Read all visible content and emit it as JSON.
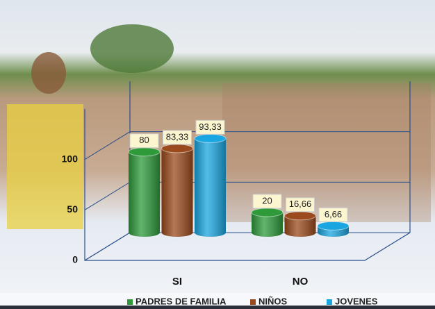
{
  "chart_data": {
    "type": "bar",
    "categories": [
      "SI",
      "NO"
    ],
    "series": [
      {
        "name": "PADRES DE FAMILIA",
        "color": "#2e9a3a",
        "values": [
          80,
          20
        ],
        "value_labels": [
          "80",
          "20"
        ]
      },
      {
        "name": "NIÑOS",
        "color": "#9a4a1c",
        "values": [
          83.33,
          16.66
        ],
        "value_labels": [
          "83,33",
          "16,66"
        ]
      },
      {
        "name": "JOVENES",
        "color": "#1aa6e0",
        "values": [
          93.33,
          6.66
        ],
        "value_labels": [
          "93,33",
          "6,66"
        ]
      }
    ],
    "ylim": [
      0,
      150
    ],
    "yticks": [
      0,
      50,
      100
    ],
    "grid": true
  }
}
